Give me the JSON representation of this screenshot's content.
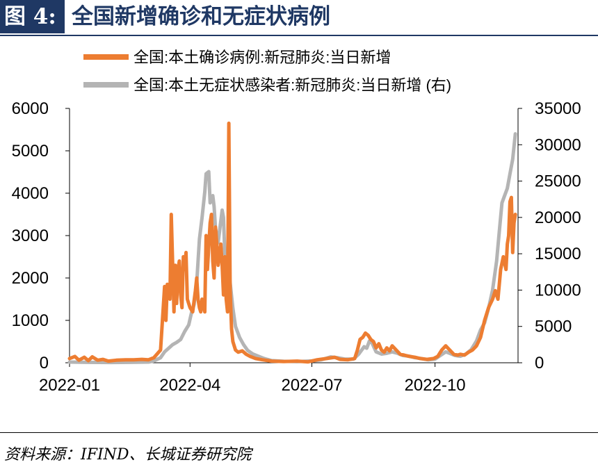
{
  "header": {
    "figure_label": "图 4:",
    "title": "全国新增确诊和无症状病例"
  },
  "source": "资料来源：IFIND、长城证券研究院",
  "colors": {
    "header_bg": "#1f3864",
    "series_confirmed": "#ed7d31",
    "series_asymptomatic": "#b4b4b4"
  },
  "chart_data": {
    "type": "line",
    "legend": [
      "全国:本土确诊病例:新冠肺炎:当日新增",
      "全国:本土无症状感染者:新冠肺炎:当日新增 (右)"
    ],
    "legend_placement": "top",
    "grid": false,
    "x_range": [
      "2022-01-01",
      "2022-12-02"
    ],
    "x_ticks": [
      "2022-01-01",
      "2022-04-01",
      "2022-07-01",
      "2022-10-01"
    ],
    "x_tick_labels": [
      "2022-01",
      "2022-04",
      "2022-07",
      "2022-10"
    ],
    "y_left": {
      "lim": [
        0,
        6000
      ],
      "ticks": [
        0,
        1000,
        2000,
        3000,
        4000,
        5000,
        6000
      ]
    },
    "y_right": {
      "lim": [
        0,
        35000
      ],
      "ticks": [
        0,
        5000,
        10000,
        15000,
        20000,
        25000,
        30000,
        35000
      ]
    },
    "series": [
      {
        "name": "全国:本土确诊病例:新冠肺炎:当日新增",
        "axis": "left",
        "points": [
          [
            "2022-01-01",
            100
          ],
          [
            "2022-01-05",
            150
          ],
          [
            "2022-01-08",
            60
          ],
          [
            "2022-01-12",
            130
          ],
          [
            "2022-01-15",
            50
          ],
          [
            "2022-01-18",
            140
          ],
          [
            "2022-01-22",
            60
          ],
          [
            "2022-01-26",
            80
          ],
          [
            "2022-01-30",
            40
          ],
          [
            "2022-02-05",
            60
          ],
          [
            "2022-02-12",
            70
          ],
          [
            "2022-02-18",
            70
          ],
          [
            "2022-02-24",
            80
          ],
          [
            "2022-03-01",
            70
          ],
          [
            "2022-03-05",
            120
          ],
          [
            "2022-03-10",
            300
          ],
          [
            "2022-03-13",
            1800
          ],
          [
            "2022-03-14",
            1000
          ],
          [
            "2022-03-15",
            1850
          ],
          [
            "2022-03-17",
            1500
          ],
          [
            "2022-03-18",
            3500
          ],
          [
            "2022-03-20",
            1200
          ],
          [
            "2022-03-21",
            2300
          ],
          [
            "2022-03-22",
            1400
          ],
          [
            "2022-03-23",
            2200
          ],
          [
            "2022-03-24",
            2400
          ],
          [
            "2022-03-25",
            1600
          ],
          [
            "2022-03-26",
            1300
          ],
          [
            "2022-03-27",
            2500
          ],
          [
            "2022-03-28",
            2200
          ],
          [
            "2022-03-29",
            2600
          ],
          [
            "2022-03-30",
            1500
          ],
          [
            "2022-04-01",
            1300
          ],
          [
            "2022-04-03",
            1200
          ],
          [
            "2022-04-05",
            1700
          ],
          [
            "2022-04-06",
            2000
          ],
          [
            "2022-04-07",
            1500
          ],
          [
            "2022-04-08",
            1300
          ],
          [
            "2022-04-09",
            1200
          ],
          [
            "2022-04-10",
            1500
          ],
          [
            "2022-04-12",
            1200
          ],
          [
            "2022-04-13",
            3000
          ],
          [
            "2022-04-14",
            2200
          ],
          [
            "2022-04-16",
            3300
          ],
          [
            "2022-04-17",
            3500
          ],
          [
            "2022-04-18",
            2400
          ],
          [
            "2022-04-19",
            2000
          ],
          [
            "2022-04-20",
            3200
          ],
          [
            "2022-04-21",
            2800
          ],
          [
            "2022-04-22",
            2300
          ],
          [
            "2022-04-24",
            2800
          ],
          [
            "2022-04-25",
            2300
          ],
          [
            "2022-04-26",
            1600
          ],
          [
            "2022-04-27",
            2500
          ],
          [
            "2022-04-28",
            1500
          ],
          [
            "2022-04-29",
            1200
          ],
          [
            "2022-04-30",
            5650
          ],
          [
            "2022-05-01",
            1700
          ],
          [
            "2022-05-02",
            800
          ],
          [
            "2022-05-03",
            500
          ],
          [
            "2022-05-05",
            300
          ],
          [
            "2022-05-07",
            250
          ],
          [
            "2022-05-10",
            280
          ],
          [
            "2022-05-13",
            200
          ],
          [
            "2022-05-16",
            150
          ],
          [
            "2022-05-20",
            100
          ],
          [
            "2022-05-25",
            70
          ],
          [
            "2022-06-01",
            40
          ],
          [
            "2022-06-10",
            30
          ],
          [
            "2022-06-20",
            40
          ],
          [
            "2022-06-28",
            20
          ],
          [
            "2022-07-05",
            70
          ],
          [
            "2022-07-12",
            100
          ],
          [
            "2022-07-18",
            130
          ],
          [
            "2022-07-22",
            80
          ],
          [
            "2022-07-28",
            70
          ],
          [
            "2022-08-02",
            100
          ],
          [
            "2022-08-04",
            300
          ],
          [
            "2022-08-06",
            550
          ],
          [
            "2022-08-08",
            600
          ],
          [
            "2022-08-10",
            700
          ],
          [
            "2022-08-12",
            650
          ],
          [
            "2022-08-14",
            550
          ],
          [
            "2022-08-16",
            500
          ],
          [
            "2022-08-18",
            350
          ],
          [
            "2022-08-20",
            450
          ],
          [
            "2022-08-22",
            300
          ],
          [
            "2022-08-24",
            250
          ],
          [
            "2022-08-26",
            350
          ],
          [
            "2022-08-28",
            280
          ],
          [
            "2022-08-30",
            400
          ],
          [
            "2022-09-02",
            300
          ],
          [
            "2022-09-05",
            200
          ],
          [
            "2022-09-08",
            180
          ],
          [
            "2022-09-12",
            150
          ],
          [
            "2022-09-16",
            130
          ],
          [
            "2022-09-20",
            100
          ],
          [
            "2022-09-25",
            80
          ],
          [
            "2022-09-30",
            100
          ],
          [
            "2022-10-03",
            150
          ],
          [
            "2022-10-06",
            300
          ],
          [
            "2022-10-09",
            400
          ],
          [
            "2022-10-12",
            300
          ],
          [
            "2022-10-15",
            200
          ],
          [
            "2022-10-18",
            180
          ],
          [
            "2022-10-20",
            200
          ],
          [
            "2022-10-23",
            180
          ],
          [
            "2022-10-26",
            250
          ],
          [
            "2022-10-29",
            300
          ],
          [
            "2022-11-01",
            400
          ],
          [
            "2022-11-04",
            600
          ],
          [
            "2022-11-07",
            1000
          ],
          [
            "2022-11-10",
            1300
          ],
          [
            "2022-11-13",
            1500
          ],
          [
            "2022-11-15",
            1700
          ],
          [
            "2022-11-17",
            1500
          ],
          [
            "2022-11-19",
            2200
          ],
          [
            "2022-11-21",
            2500
          ],
          [
            "2022-11-23",
            2200
          ],
          [
            "2022-11-24",
            2800
          ],
          [
            "2022-11-25",
            3000
          ],
          [
            "2022-11-26",
            3800
          ],
          [
            "2022-11-27",
            3900
          ],
          [
            "2022-11-28",
            2600
          ],
          [
            "2022-11-29",
            3300
          ],
          [
            "2022-11-30",
            3500
          ]
        ]
      },
      {
        "name": "全国:本土无症状感染者:新冠肺炎:当日新增 (右)",
        "axis": "right",
        "points": [
          [
            "2022-01-01",
            100
          ],
          [
            "2022-01-15",
            60
          ],
          [
            "2022-02-01",
            40
          ],
          [
            "2022-02-15",
            60
          ],
          [
            "2022-03-01",
            100
          ],
          [
            "2022-03-05",
            250
          ],
          [
            "2022-03-10",
            700
          ],
          [
            "2022-03-13",
            1500
          ],
          [
            "2022-03-16",
            2000
          ],
          [
            "2022-03-19",
            2500
          ],
          [
            "2022-03-22",
            2800
          ],
          [
            "2022-03-25",
            3200
          ],
          [
            "2022-03-28",
            4300
          ],
          [
            "2022-03-31",
            5200
          ],
          [
            "2022-04-02",
            6800
          ],
          [
            "2022-04-04",
            8000
          ],
          [
            "2022-04-06",
            11000
          ],
          [
            "2022-04-08",
            17000
          ],
          [
            "2022-04-10",
            20000
          ],
          [
            "2022-04-12",
            23500
          ],
          [
            "2022-04-13",
            26000
          ],
          [
            "2022-04-15",
            26300
          ],
          [
            "2022-04-16",
            22000
          ],
          [
            "2022-04-18",
            23000
          ],
          [
            "2022-04-19",
            21500
          ],
          [
            "2022-04-20",
            18500
          ],
          [
            "2022-04-22",
            16500
          ],
          [
            "2022-04-23",
            18000
          ],
          [
            "2022-04-25",
            21000
          ],
          [
            "2022-04-26",
            20000
          ],
          [
            "2022-04-27",
            15000
          ],
          [
            "2022-04-29",
            13000
          ],
          [
            "2022-05-01",
            11000
          ],
          [
            "2022-05-03",
            7500
          ],
          [
            "2022-05-05",
            5000
          ],
          [
            "2022-05-08",
            3500
          ],
          [
            "2022-05-11",
            2500
          ],
          [
            "2022-05-14",
            1700
          ],
          [
            "2022-05-18",
            1200
          ],
          [
            "2022-05-22",
            900
          ],
          [
            "2022-05-26",
            600
          ],
          [
            "2022-06-01",
            300
          ],
          [
            "2022-06-10",
            200
          ],
          [
            "2022-06-20",
            150
          ],
          [
            "2022-07-01",
            250
          ],
          [
            "2022-07-08",
            400
          ],
          [
            "2022-07-15",
            800
          ],
          [
            "2022-07-20",
            700
          ],
          [
            "2022-07-26",
            500
          ],
          [
            "2022-08-01",
            500
          ],
          [
            "2022-08-05",
            1200
          ],
          [
            "2022-08-09",
            2200
          ],
          [
            "2022-08-11",
            2000
          ],
          [
            "2022-08-13",
            3000
          ],
          [
            "2022-08-15",
            2700
          ],
          [
            "2022-08-18",
            1500
          ],
          [
            "2022-08-22",
            1200
          ],
          [
            "2022-08-26",
            1300
          ],
          [
            "2022-08-30",
            1500
          ],
          [
            "2022-09-03",
            1300
          ],
          [
            "2022-09-07",
            1000
          ],
          [
            "2022-09-12",
            900
          ],
          [
            "2022-09-16",
            700
          ],
          [
            "2022-09-20",
            600
          ],
          [
            "2022-09-26",
            400
          ],
          [
            "2022-10-01",
            500
          ],
          [
            "2022-10-05",
            1000
          ],
          [
            "2022-10-09",
            1500
          ],
          [
            "2022-10-12",
            1300
          ],
          [
            "2022-10-16",
            1000
          ],
          [
            "2022-10-20",
            900
          ],
          [
            "2022-10-24",
            1200
          ],
          [
            "2022-10-28",
            1800
          ],
          [
            "2022-11-01",
            3000
          ],
          [
            "2022-11-04",
            4500
          ],
          [
            "2022-11-07",
            5500
          ],
          [
            "2022-11-10",
            7500
          ],
          [
            "2022-11-13",
            10000
          ],
          [
            "2022-11-16",
            14000
          ],
          [
            "2022-11-18",
            18000
          ],
          [
            "2022-11-20",
            22000
          ],
          [
            "2022-11-22",
            23000
          ],
          [
            "2022-11-24",
            24000
          ],
          [
            "2022-11-26",
            26000
          ],
          [
            "2022-11-28",
            28000
          ],
          [
            "2022-11-30",
            31500
          ]
        ]
      }
    ]
  }
}
